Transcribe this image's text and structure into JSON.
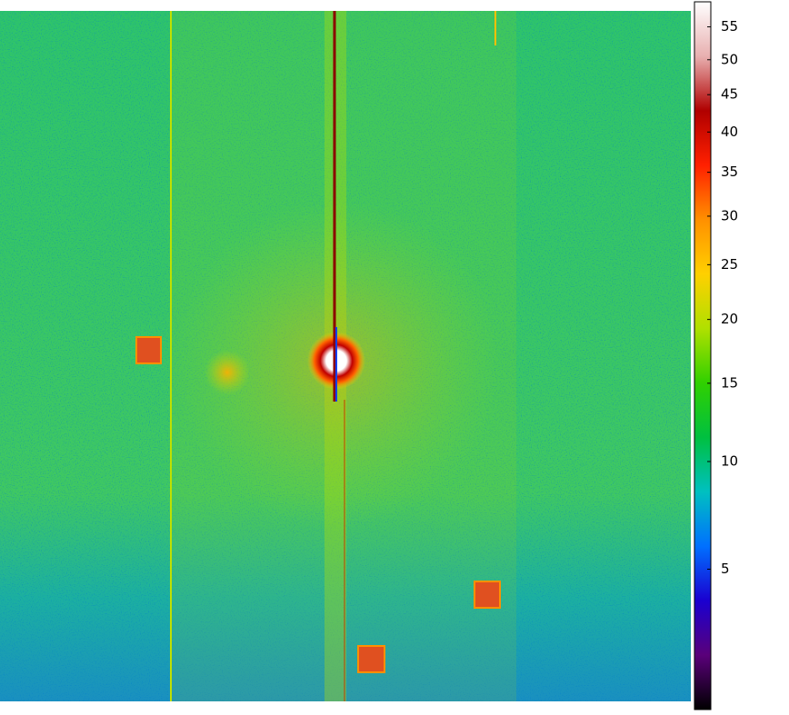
{
  "chart_data": {
    "type": "colorbar",
    "scale": "power",
    "exponent": 0.4,
    "clim": [
      1.3,
      59
    ],
    "ticks": [
      5,
      10,
      15,
      20,
      25,
      30,
      35,
      40,
      45,
      50,
      55
    ],
    "colormap": [
      "#000000",
      "#5a007a",
      "#1a00d0",
      "#0070ff",
      "#00c0c0",
      "#00c040",
      "#30d000",
      "#b0e000",
      "#ffd000",
      "#ff9000",
      "#ff2000",
      "#b00000",
      "#e8b0b0",
      "#ffffff"
    ]
  }
}
